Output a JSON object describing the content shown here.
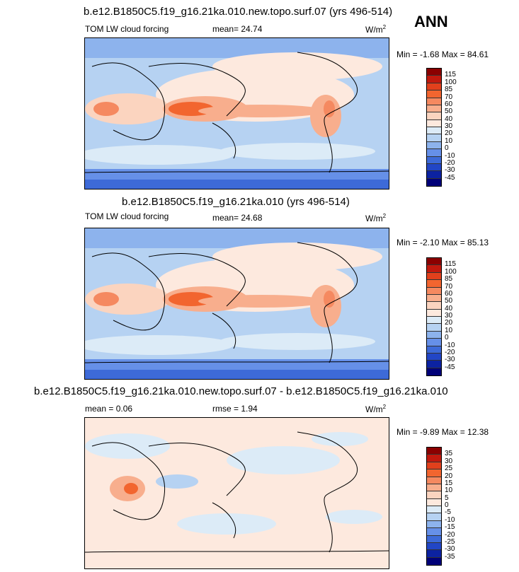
{
  "ann_label": "ANN",
  "chart_data": [
    {
      "type": "heatmap",
      "title": "b.e12.B1850C5.f19_g16.21ka.010.new.topo.surf.07 (yrs 496-514)",
      "variable": "TOM LW cloud forcing",
      "mean_text": "mean=  24.74",
      "units": "W/m",
      "units_sup": "2",
      "minmax_text": "Min = -1.68 Max = 84.61",
      "levels": [
        "115",
        "100",
        "85",
        "70",
        "60",
        "50",
        "40",
        "30",
        "20",
        "10",
        "0",
        "-10",
        "-20",
        "-30",
        "-45"
      ],
      "colors": [
        "#8b0000",
        "#c1190e",
        "#e2401c",
        "#f2652f",
        "#f58960",
        "#f8ae8d",
        "#fbd4bf",
        "#fde9de",
        "#dcebf7",
        "#b6d2f2",
        "#8db3ed",
        "#6690e8",
        "#3d6ad8",
        "#2246c6",
        "#0c22a1",
        "#000078"
      ]
    },
    {
      "type": "heatmap",
      "title": "b.e12.B1850C5.f19_g16.21ka.010 (yrs 496-514)",
      "variable": "TOM LW cloud forcing",
      "mean_text": "mean=  24.68",
      "units": "W/m",
      "units_sup": "2",
      "minmax_text": "Min = -2.10 Max = 85.13",
      "levels": [
        "115",
        "100",
        "85",
        "70",
        "60",
        "50",
        "40",
        "30",
        "20",
        "10",
        "0",
        "-10",
        "-20",
        "-30",
        "-45"
      ],
      "colors": [
        "#8b0000",
        "#c1190e",
        "#e2401c",
        "#f2652f",
        "#f58960",
        "#f8ae8d",
        "#fbd4bf",
        "#fde9de",
        "#dcebf7",
        "#b6d2f2",
        "#8db3ed",
        "#6690e8",
        "#3d6ad8",
        "#2246c6",
        "#0c22a1",
        "#000078"
      ]
    },
    {
      "type": "heatmap",
      "title": "b.e12.B1850C5.f19_g16.21ka.010.new.topo.surf.07 - b.e12.B1850C5.f19_g16.21ka.010",
      "mean_text": "mean =  0.06",
      "rmse_text": "rmse =  1.94",
      "units": "W/m",
      "units_sup": "2",
      "minmax_text": "Min = -9.89 Max = 12.38",
      "levels": [
        "35",
        "30",
        "25",
        "20",
        "15",
        "10",
        "5",
        "0",
        "-5",
        "-10",
        "-15",
        "-20",
        "-25",
        "-30",
        "-35"
      ],
      "colors": [
        "#8b0000",
        "#c1190e",
        "#e2401c",
        "#f2652f",
        "#f58960",
        "#f8ae8d",
        "#fbd4bf",
        "#fde9de",
        "#dcebf7",
        "#b6d2f2",
        "#8db3ed",
        "#6690e8",
        "#3d6ad8",
        "#2246c6",
        "#0c22a1",
        "#000078"
      ]
    }
  ]
}
